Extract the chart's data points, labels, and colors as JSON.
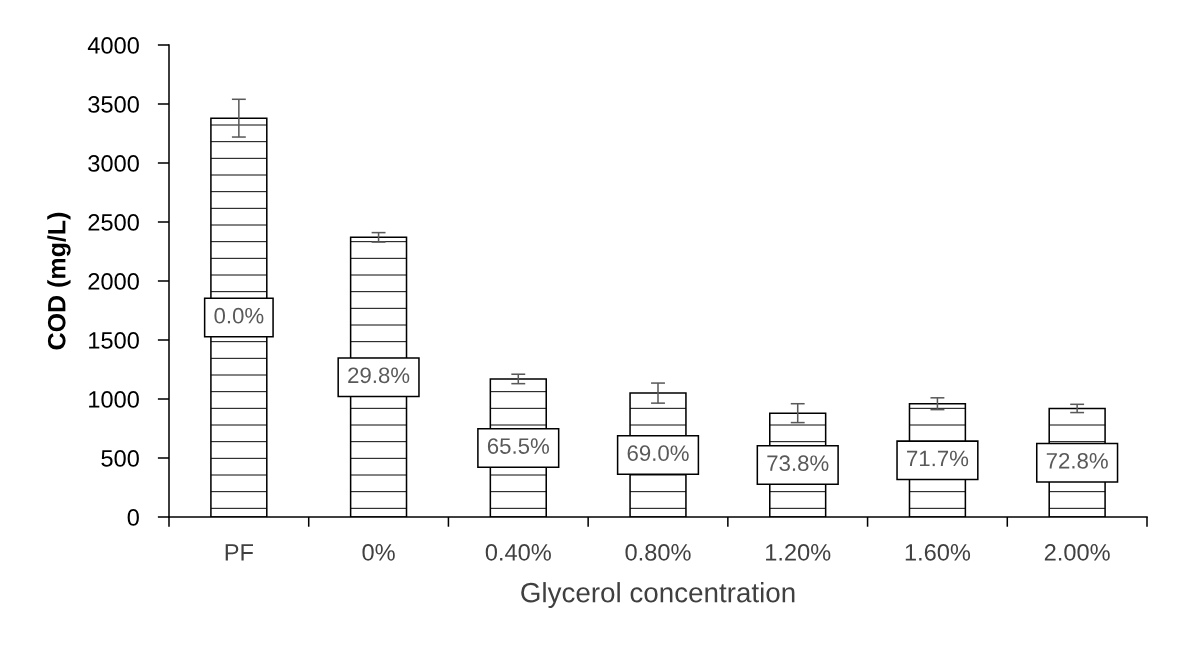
{
  "chart_data": {
    "type": "bar",
    "xlabel": "Glycerol concentration",
    "ylabel": "COD (mg/L)",
    "categories": [
      "PF",
      "0%",
      "0.40%",
      "0.80%",
      "1.20%",
      "1.60%",
      "2.00%"
    ],
    "values": [
      3380,
      2370,
      1170,
      1050,
      880,
      960,
      920
    ],
    "errors": [
      160,
      40,
      40,
      85,
      80,
      50,
      35
    ],
    "color": "#000000",
    "annotations": [
      "0.0%",
      "29.8%",
      "65.5%",
      "69.0%",
      "73.8%",
      "71.7%",
      "72.8%"
    ],
    "ylim": [
      0,
      4000
    ],
    "yticks": [
      0,
      500,
      1000,
      1500,
      2000,
      2500,
      3000,
      3500,
      4000
    ]
  }
}
